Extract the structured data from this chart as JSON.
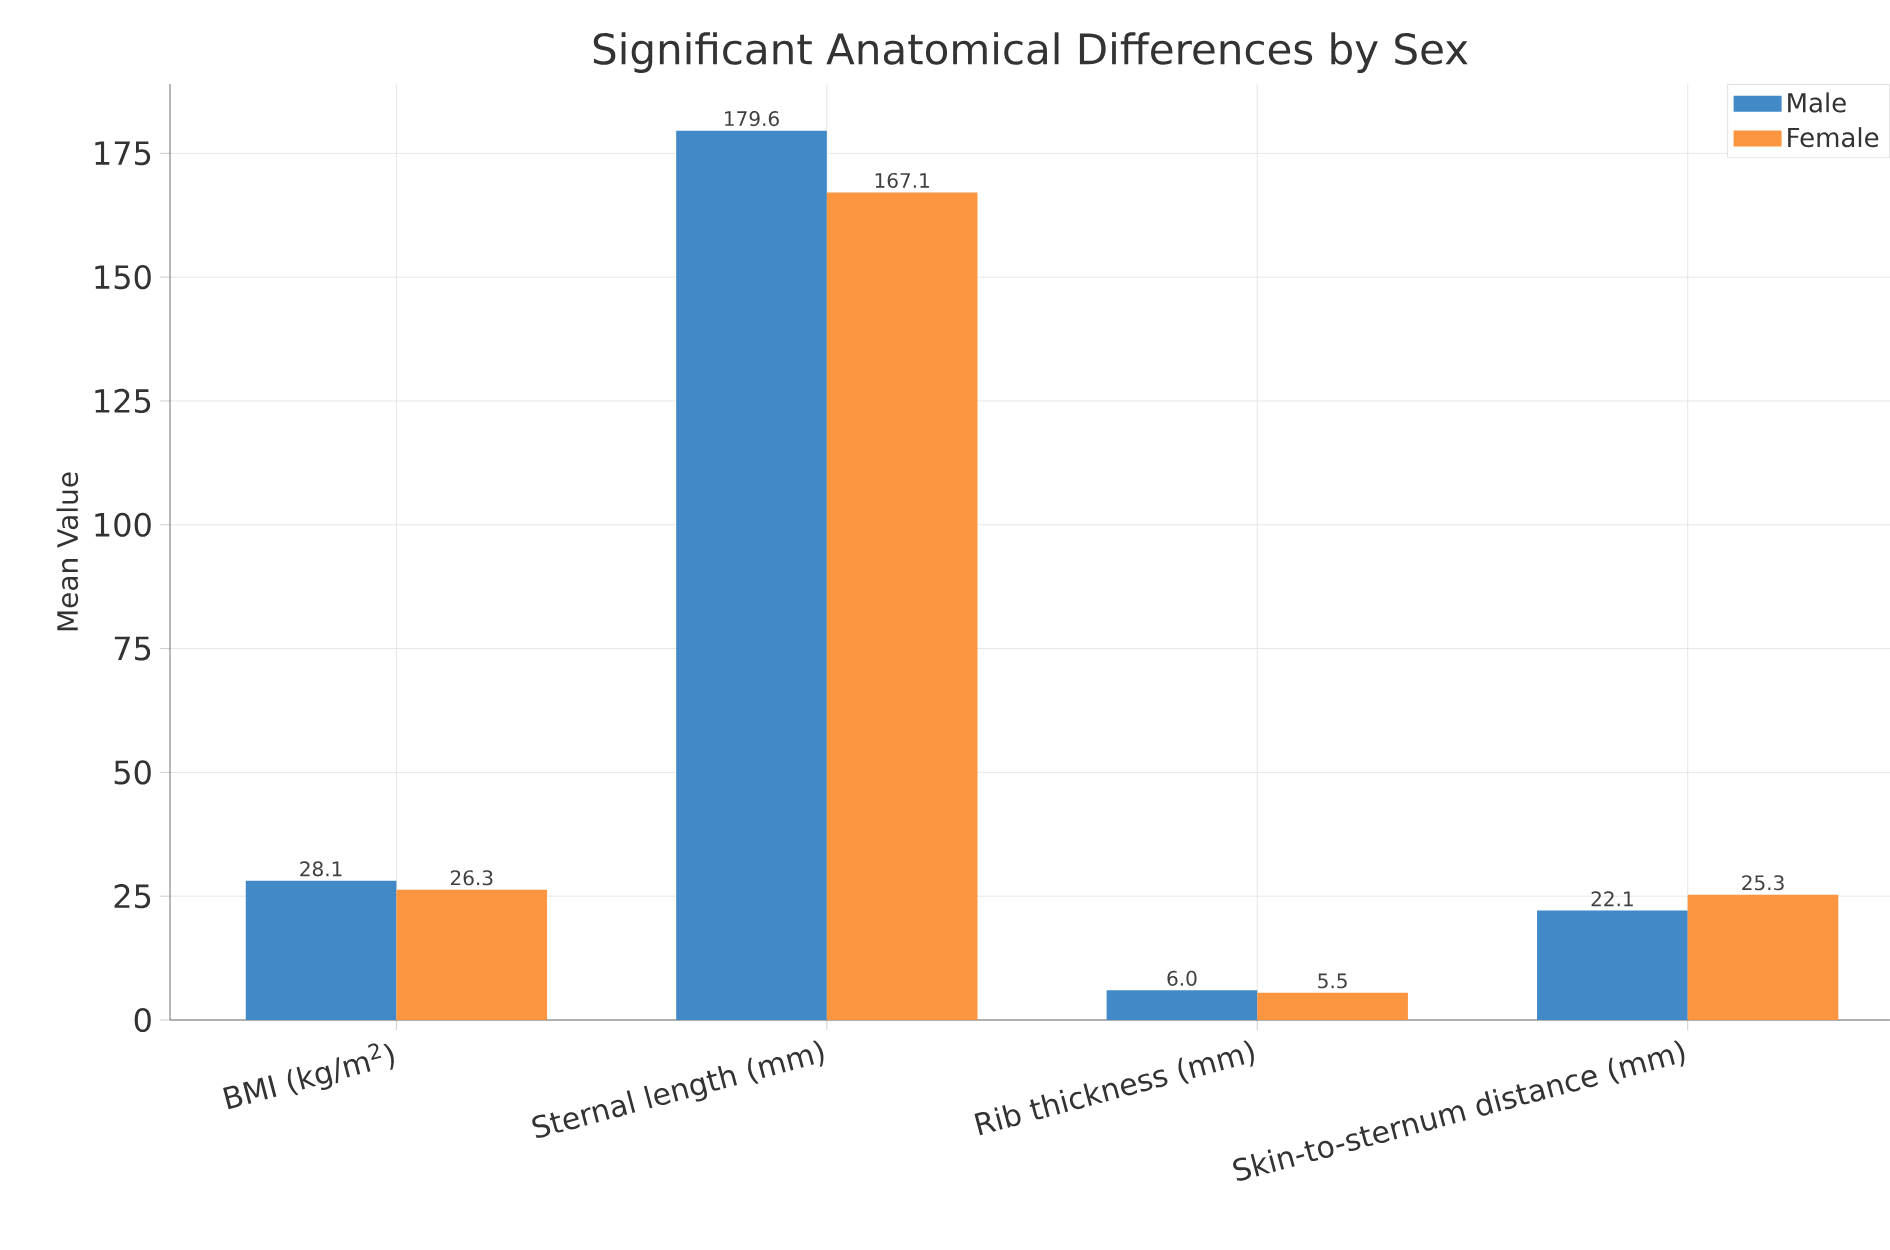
{
  "chart_data": {
    "type": "bar",
    "title": "Significant Anatomical Differences by Sex",
    "ylabel": "Mean Value",
    "categories": [
      "BMI (kg/m$^{2}$)",
      "Sternal length (mm)",
      "Rib thickness (mm)",
      "Skin-to-sternum distance (mm)"
    ],
    "series": [
      {
        "name": "Male",
        "color": "#4189c7",
        "values": [
          28.1,
          179.6,
          6.0,
          22.1
        ],
        "value_labels": [
          "28.1",
          "179.6",
          "6.0",
          "22.1"
        ]
      },
      {
        "name": "Female",
        "color": "#fb9540",
        "values": [
          26.3,
          167.1,
          5.5,
          25.3
        ],
        "value_labels": [
          "26.3",
          "167.1",
          "5.5",
          "25.3"
        ]
      }
    ],
    "ylim": [
      0,
      189
    ],
    "yticks": [
      0,
      25,
      50,
      75,
      100,
      125,
      150,
      175
    ],
    "grid": true,
    "legend": "top right"
  }
}
